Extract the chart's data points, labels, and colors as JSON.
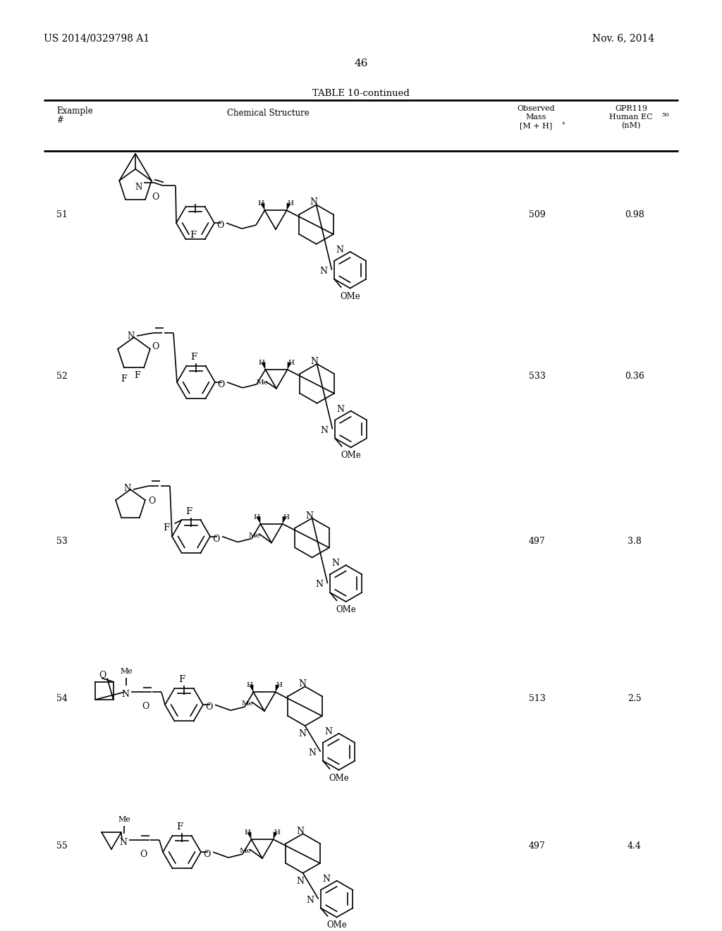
{
  "patent_number": "US 2014/0329798 A1",
  "patent_date": "Nov. 6, 2014",
  "page_number": "46",
  "table_title": "TABLE 10-continued",
  "rows": [
    {
      "example": "51",
      "mass": "509",
      "ec50": "0.98"
    },
    {
      "example": "52",
      "mass": "533",
      "ec50": "0.36"
    },
    {
      "example": "53",
      "mass": "497",
      "ec50": "3.8"
    },
    {
      "example": "54",
      "mass": "513",
      "ec50": "2.5"
    },
    {
      "example": "55",
      "mass": "497",
      "ec50": "4.4"
    }
  ],
  "row_centers_y": [
    310,
    540,
    775,
    1000,
    1210
  ],
  "bg_color": "#ffffff"
}
